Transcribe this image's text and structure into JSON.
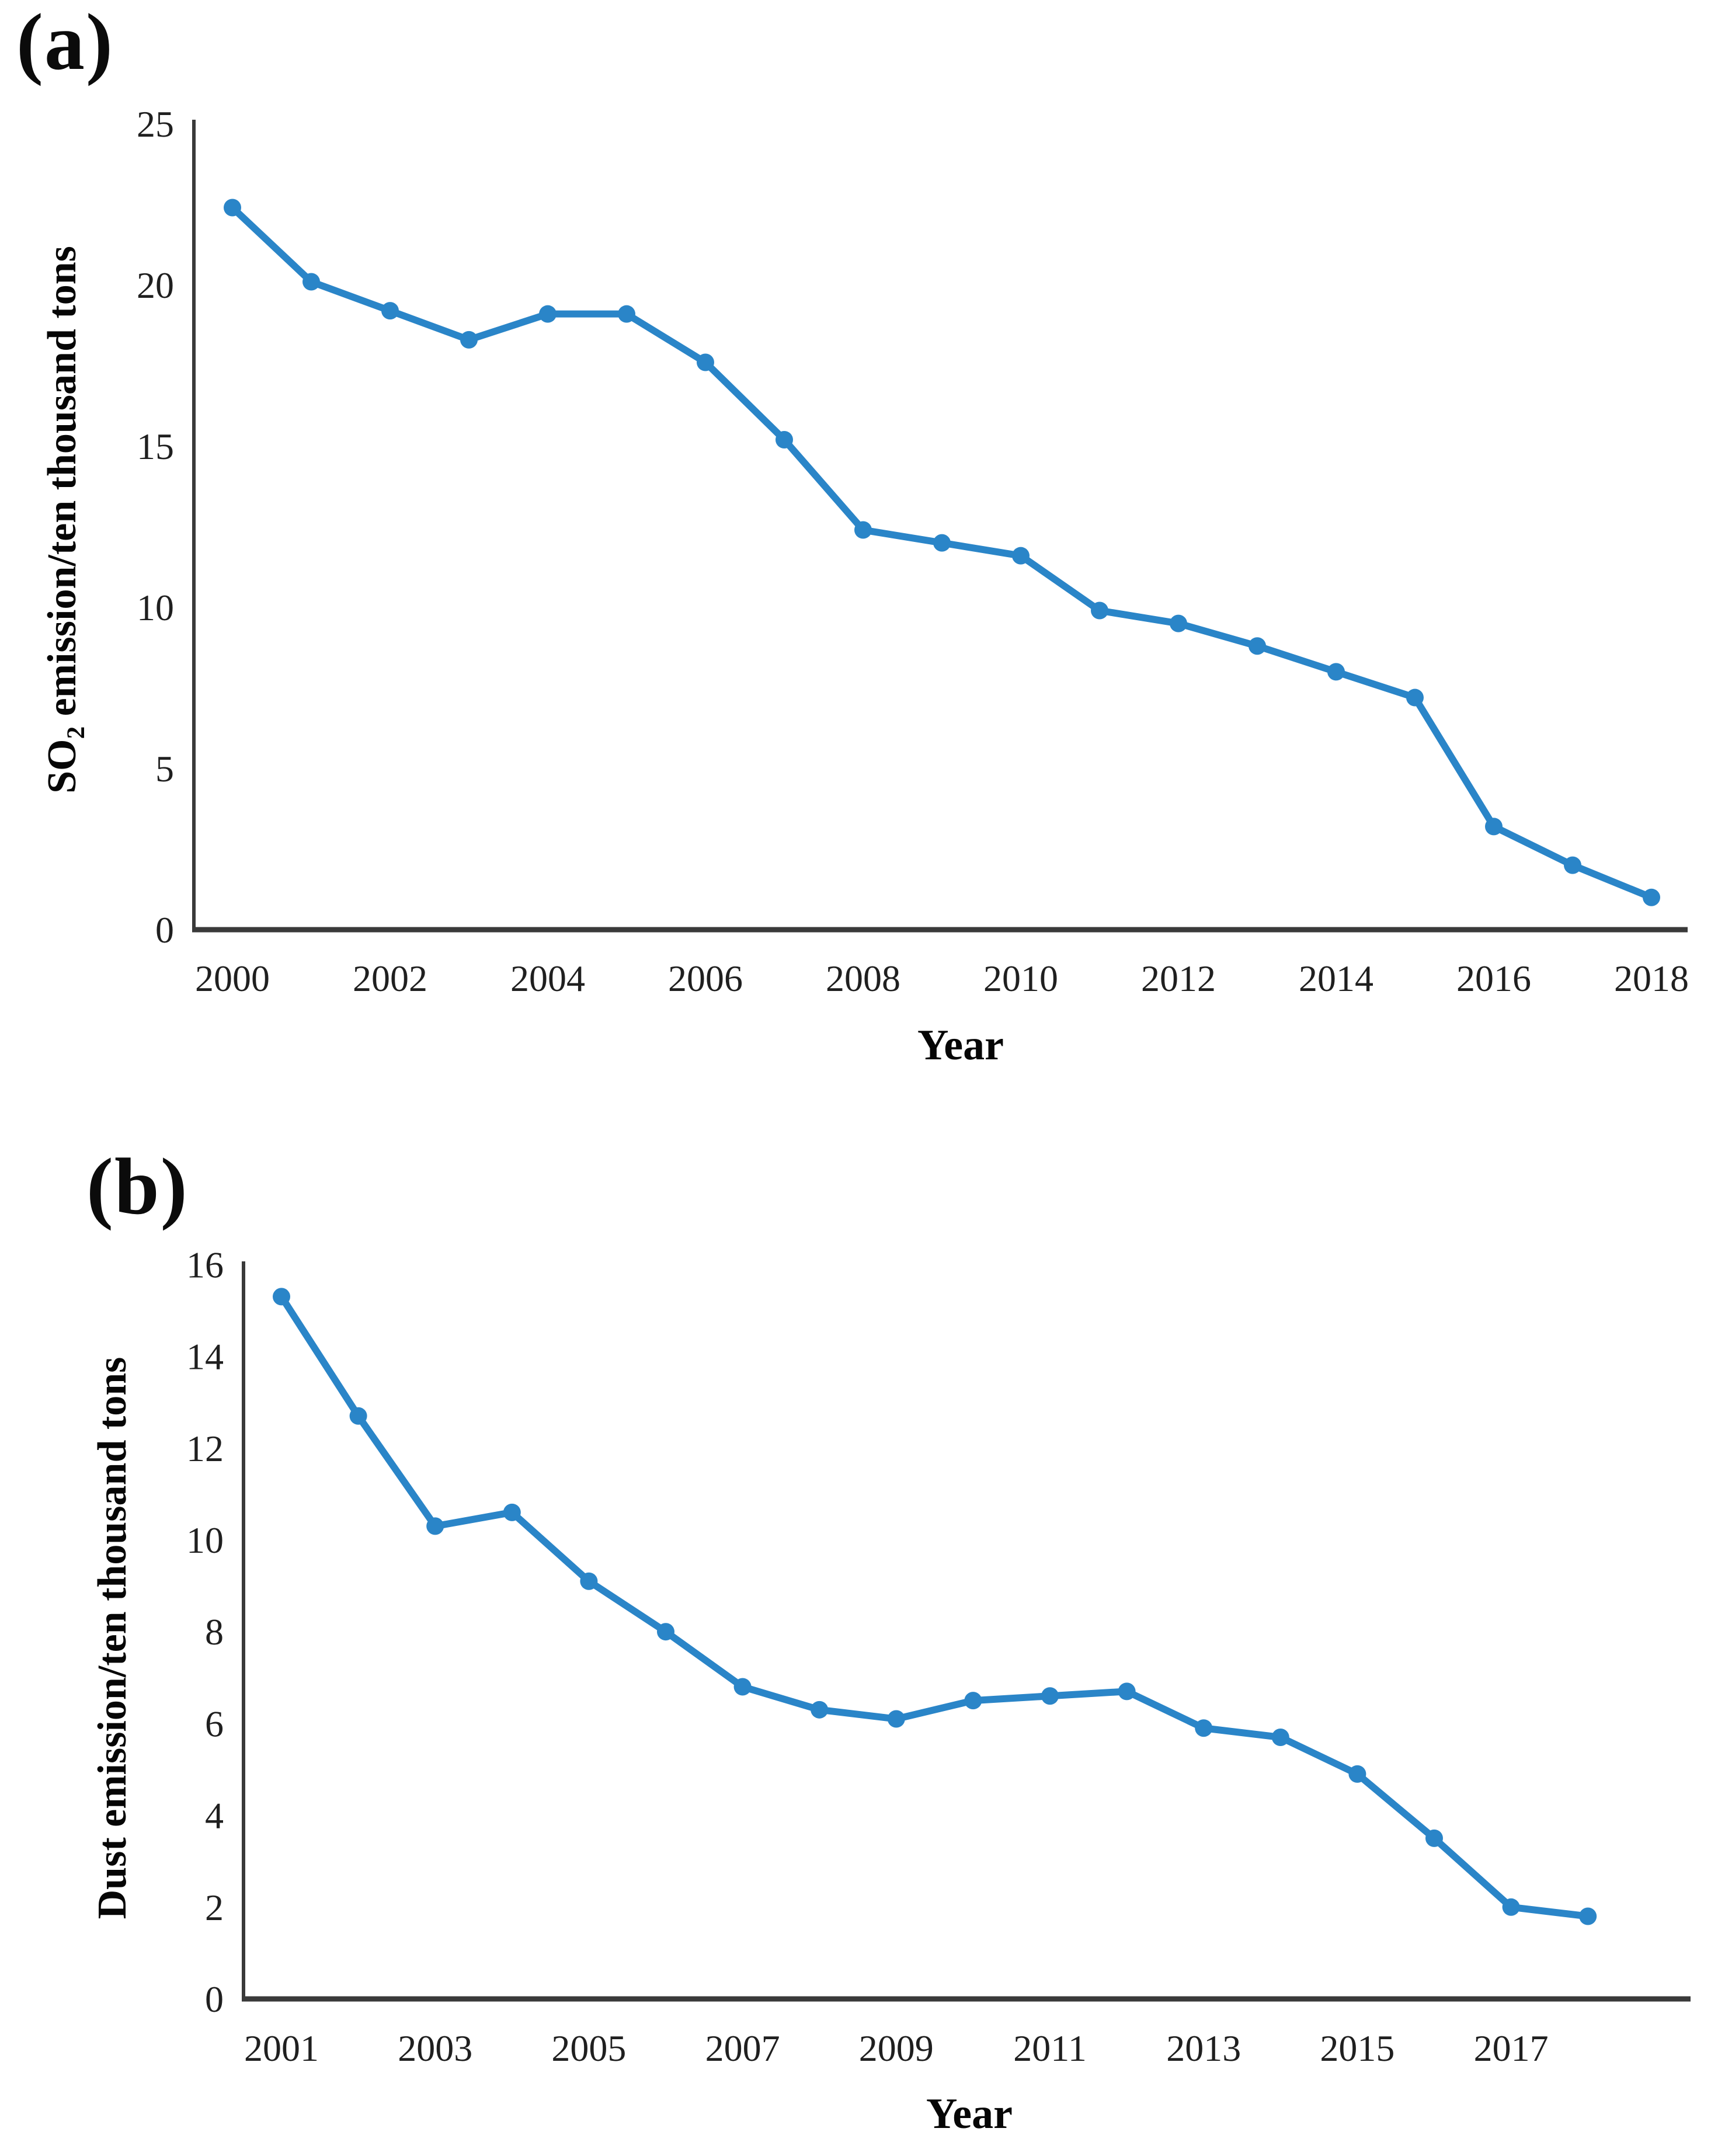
{
  "figure": {
    "background": "#ffffff",
    "panels": [
      {
        "id": "a",
        "panel_label": "(a)",
        "ylabel": {
          "prefix": "SO",
          "sub": "2",
          "suffix": " emission/ten thousand tons"
        },
        "xlabel": "Year"
      },
      {
        "id": "b",
        "panel_label": "(b)",
        "ylabel": {
          "prefix": "Dust emission/ten thousand tons",
          "sub": "",
          "suffix": ""
        },
        "xlabel": "Year"
      }
    ]
  },
  "chart_data": [
    {
      "type": "line",
      "panel": "a",
      "title": "",
      "xlabel": "Year",
      "ylabel": "SO2 emission/ten thousand tons",
      "x": [
        2000,
        2001,
        2002,
        2003,
        2004,
        2005,
        2006,
        2007,
        2008,
        2009,
        2010,
        2011,
        2012,
        2013,
        2014,
        2015,
        2016,
        2017,
        2018
      ],
      "y": [
        22.4,
        20.1,
        19.2,
        18.3,
        19.1,
        19.1,
        17.6,
        15.2,
        12.4,
        12.0,
        11.6,
        9.9,
        9.5,
        8.8,
        8.0,
        7.2,
        3.2,
        2.0,
        1.0
      ],
      "x_tick_labels": [
        "2000",
        "2002",
        "2004",
        "2006",
        "2008",
        "2010",
        "2012",
        "2014",
        "2016",
        "2018"
      ],
      "y_tick_labels": [
        "25",
        "20",
        "15",
        "10",
        "5",
        "0"
      ],
      "xlim": [
        2000,
        2018
      ],
      "ylim": [
        0,
        25
      ],
      "grid": false,
      "legend": "none",
      "marker": "circle",
      "line_color": "#2A85C8",
      "axis_color": "#3a3a3a",
      "text_color": "#1f1f1f"
    },
    {
      "type": "line",
      "panel": "b",
      "title": "",
      "xlabel": "Year",
      "ylabel": "Dust emission/ten thousand tons",
      "x": [
        2001,
        2002,
        2003,
        2004,
        2005,
        2006,
        2007,
        2008,
        2009,
        2010,
        2011,
        2012,
        2013,
        2014,
        2015,
        2016,
        2017,
        2018
      ],
      "y": [
        15.3,
        12.7,
        10.3,
        10.6,
        9.1,
        8.0,
        6.8,
        6.3,
        6.1,
        6.5,
        6.6,
        6.7,
        5.9,
        5.7,
        4.9,
        3.5,
        2.0,
        1.8
      ],
      "x_tick_labels": [
        "2001",
        "2003",
        "2005",
        "2007",
        "2009",
        "2011",
        "2013",
        "2015",
        "2017"
      ],
      "y_tick_labels": [
        "16",
        "14",
        "12",
        "10",
        "8",
        "6",
        "4",
        "2",
        "0"
      ],
      "xlim": [
        2001,
        2018
      ],
      "ylim": [
        0,
        16
      ],
      "grid": false,
      "legend": "none",
      "marker": "circle",
      "line_color": "#2A85C8",
      "axis_color": "#3a3a3a",
      "text_color": "#1f1f1f"
    }
  ]
}
